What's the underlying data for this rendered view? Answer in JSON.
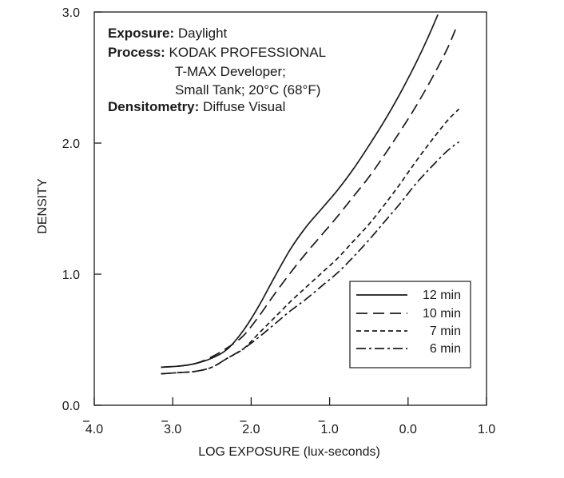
{
  "chart_data": {
    "type": "line",
    "title": "",
    "xlabel": "LOG EXPOSURE (lux-seconds)",
    "ylabel": "DENSITY",
    "xlim": [
      -4.0,
      1.0
    ],
    "ylim": [
      0.0,
      3.0
    ],
    "x_ticks": [
      {
        "value": -4.0,
        "digits": "4.0",
        "bar": true
      },
      {
        "value": -3.0,
        "digits": "3.0",
        "bar": true
      },
      {
        "value": -2.0,
        "digits": "2.0",
        "bar": true
      },
      {
        "value": -1.0,
        "digits": "1.0",
        "bar": true
      },
      {
        "value": 0.0,
        "digits": "0.0",
        "bar": false
      },
      {
        "value": 1.0,
        "digits": "1.0",
        "bar": false
      }
    ],
    "y_ticks": [
      {
        "value": 0.0,
        "label": "0.0"
      },
      {
        "value": 1.0,
        "label": "1.0"
      },
      {
        "value": 2.0,
        "label": "2.0"
      },
      {
        "value": 3.0,
        "label": "3.0"
      }
    ],
    "grid": false,
    "legend_position": "bottom-right",
    "annotation": [
      {
        "bold": "Exposure:",
        "text": "Daylight"
      },
      {
        "bold": "Process:",
        "text": "KODAK PROFESSIONAL"
      },
      {
        "bold": "",
        "text": "T-MAX Developer;"
      },
      {
        "bold": "",
        "text": "Small Tank; 20°C (68°F)"
      },
      {
        "bold": "Densitometry:",
        "text": "Diffuse Visual"
      }
    ],
    "series": [
      {
        "name": "12 min",
        "dash": "solid",
        "x": [
          -3.15,
          -2.9,
          -2.7,
          -2.5,
          -2.3,
          -2.1,
          -1.9,
          -1.7,
          -1.5,
          -1.3,
          -1.1,
          -0.9,
          -0.7,
          -0.5,
          -0.3,
          -0.1,
          0.1,
          0.25,
          0.38
        ],
        "y": [
          0.29,
          0.3,
          0.32,
          0.36,
          0.43,
          0.57,
          0.76,
          0.98,
          1.19,
          1.36,
          1.5,
          1.64,
          1.8,
          1.98,
          2.17,
          2.38,
          2.61,
          2.8,
          2.98
        ]
      },
      {
        "name": "10 min",
        "dash": "long-dash",
        "x": [
          -3.15,
          -2.9,
          -2.7,
          -2.5,
          -2.3,
          -2.1,
          -1.9,
          -1.7,
          -1.5,
          -1.3,
          -1.1,
          -0.9,
          -0.7,
          -0.5,
          -0.3,
          -0.1,
          0.1,
          0.3,
          0.5,
          0.62
        ],
        "y": [
          0.29,
          0.3,
          0.32,
          0.37,
          0.44,
          0.53,
          0.68,
          0.85,
          1.01,
          1.16,
          1.3,
          1.44,
          1.59,
          1.74,
          1.91,
          2.09,
          2.28,
          2.49,
          2.72,
          2.89
        ]
      },
      {
        "name": "7 min",
        "dash": "short-dash",
        "x": [
          -3.15,
          -2.9,
          -2.7,
          -2.5,
          -2.3,
          -2.1,
          -1.9,
          -1.7,
          -1.5,
          -1.3,
          -1.1,
          -0.9,
          -0.7,
          -0.5,
          -0.3,
          -0.1,
          0.1,
          0.3,
          0.5,
          0.65
        ],
        "y": [
          0.24,
          0.25,
          0.26,
          0.29,
          0.36,
          0.43,
          0.55,
          0.67,
          0.79,
          0.9,
          1.01,
          1.12,
          1.25,
          1.38,
          1.53,
          1.69,
          1.86,
          2.02,
          2.17,
          2.26
        ]
      },
      {
        "name": "6 min",
        "dash": "dash-dot",
        "x": [
          -3.15,
          -2.9,
          -2.7,
          -2.5,
          -2.3,
          -2.1,
          -1.9,
          -1.7,
          -1.5,
          -1.3,
          -1.1,
          -0.9,
          -0.7,
          -0.5,
          -0.3,
          -0.1,
          0.1,
          0.3,
          0.5,
          0.65
        ],
        "y": [
          0.24,
          0.25,
          0.26,
          0.29,
          0.36,
          0.43,
          0.52,
          0.62,
          0.72,
          0.81,
          0.91,
          1.01,
          1.13,
          1.26,
          1.4,
          1.54,
          1.69,
          1.82,
          1.94,
          2.01
        ]
      }
    ]
  }
}
